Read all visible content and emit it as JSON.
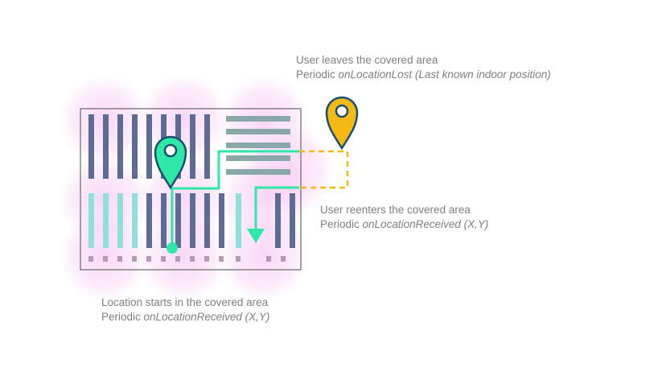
{
  "captions": {
    "leave": {
      "title": "User leaves the covered area",
      "prefix": "Periodic ",
      "callback": "onLocationLost",
      "detail": " (Last known indoor position)"
    },
    "reenter": {
      "title": "User reenters the covered area",
      "prefix": "Periodic ",
      "callback": "onLocationReceived",
      "detail": " (X,Y)"
    },
    "start": {
      "title": "Location starts in the covered area",
      "prefix": "Periodic ",
      "callback": "onLocationReceived",
      "detail": " (X,Y)"
    }
  },
  "colors": {
    "coverage": "#f4b6ef",
    "path_indoor": "#2ee8a8",
    "path_outdoor": "#f5b914",
    "pin_indoor": "#2ee8a8",
    "pin_outdoor": "#f5b914",
    "pin_outline": "#1b4f72",
    "shelf_dark": "#5e6b95",
    "shelf_teal": "#8fe0d8",
    "shelf_gray": "#8aa8a8",
    "floor_outline": "#4a4a4a",
    "text": "#7f7f7f"
  },
  "icons": {
    "indoor_pin": "map-pin-icon",
    "outdoor_pin": "map-pin-icon",
    "arrow": "arrow-down-icon"
  }
}
